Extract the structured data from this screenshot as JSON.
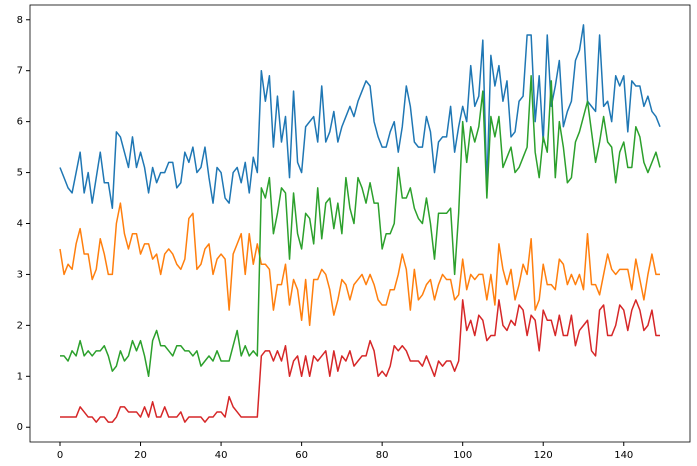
{
  "chart_data": {
    "type": "line",
    "x": [
      0,
      1,
      2,
      3,
      4,
      5,
      6,
      7,
      8,
      9,
      10,
      11,
      12,
      13,
      14,
      15,
      16,
      17,
      18,
      19,
      20,
      21,
      22,
      23,
      24,
      25,
      26,
      27,
      28,
      29,
      30,
      31,
      32,
      33,
      34,
      35,
      36,
      37,
      38,
      39,
      40,
      41,
      42,
      43,
      44,
      45,
      46,
      47,
      48,
      49,
      50,
      51,
      52,
      53,
      54,
      55,
      56,
      57,
      58,
      59,
      60,
      61,
      62,
      63,
      64,
      65,
      66,
      67,
      68,
      69,
      70,
      71,
      72,
      73,
      74,
      75,
      76,
      77,
      78,
      79,
      80,
      81,
      82,
      83,
      84,
      85,
      86,
      87,
      88,
      89,
      90,
      91,
      92,
      93,
      94,
      95,
      96,
      97,
      98,
      99,
      100,
      101,
      102,
      103,
      104,
      105,
      106,
      107,
      108,
      109,
      110,
      111,
      112,
      113,
      114,
      115,
      116,
      117,
      118,
      119,
      120,
      121,
      122,
      123,
      124,
      125,
      126,
      127,
      128,
      129,
      130,
      131,
      132,
      133,
      134,
      135,
      136,
      137,
      138,
      139,
      140,
      141,
      142,
      143,
      144,
      145,
      146,
      147,
      148,
      149
    ],
    "series": [
      {
        "color": "#1f77b4",
        "values": [
          5.1,
          4.9,
          4.7,
          4.6,
          5.0,
          5.4,
          4.6,
          5.0,
          4.4,
          4.9,
          5.4,
          4.8,
          4.8,
          4.3,
          5.8,
          5.7,
          5.4,
          5.1,
          5.7,
          5.1,
          5.4,
          5.1,
          4.6,
          5.1,
          4.8,
          5.0,
          5.0,
          5.2,
          5.2,
          4.7,
          4.8,
          5.4,
          5.2,
          5.5,
          5.0,
          5.1,
          5.5,
          4.9,
          4.4,
          5.1,
          5.0,
          4.5,
          4.4,
          5.0,
          5.1,
          4.8,
          5.2,
          4.6,
          5.3,
          5.0,
          7.0,
          6.4,
          6.9,
          5.5,
          6.5,
          5.6,
          6.1,
          4.9,
          6.6,
          5.2,
          5.0,
          5.9,
          6.0,
          6.1,
          5.6,
          6.7,
          5.6,
          5.8,
          6.2,
          5.6,
          5.9,
          6.1,
          6.3,
          6.1,
          6.4,
          6.6,
          6.8,
          6.7,
          6.0,
          5.7,
          5.5,
          5.5,
          5.8,
          6.0,
          5.4,
          5.9,
          6.7,
          6.3,
          5.6,
          5.5,
          5.5,
          6.1,
          5.8,
          5.0,
          5.6,
          5.7,
          5.7,
          6.3,
          5.4,
          5.9,
          6.3,
          6.0,
          7.1,
          6.3,
          6.5,
          7.6,
          4.7,
          7.3,
          6.7,
          7.1,
          6.4,
          6.8,
          5.7,
          5.8,
          6.4,
          6.5,
          7.7,
          7.7,
          6.0,
          6.9,
          5.6,
          7.7,
          6.3,
          6.7,
          7.2,
          5.9,
          6.2,
          6.4,
          7.2,
          7.4,
          7.9,
          6.4,
          6.3,
          6.2,
          7.7,
          6.3,
          6.4,
          6.0,
          6.9,
          6.7,
          6.9,
          5.8,
          6.8,
          6.7,
          6.7,
          6.3,
          6.5,
          6.2,
          6.1,
          5.9
        ]
      },
      {
        "color": "#ff7f0e",
        "values": [
          3.5,
          3.0,
          3.2,
          3.1,
          3.6,
          3.9,
          3.4,
          3.4,
          2.9,
          3.1,
          3.7,
          3.4,
          3.0,
          3.0,
          4.0,
          4.4,
          3.8,
          3.5,
          3.8,
          3.8,
          3.4,
          3.6,
          3.6,
          3.3,
          3.4,
          3.0,
          3.4,
          3.5,
          3.4,
          3.2,
          3.1,
          3.3,
          4.1,
          4.2,
          3.1,
          3.2,
          3.5,
          3.6,
          3.0,
          3.3,
          3.4,
          3.3,
          2.3,
          3.4,
          3.6,
          3.8,
          3.0,
          3.8,
          3.2,
          3.6,
          3.2,
          3.2,
          3.1,
          2.3,
          2.8,
          2.8,
          3.2,
          2.4,
          2.9,
          2.7,
          2.1,
          2.9,
          2.0,
          2.9,
          2.9,
          3.1,
          3.0,
          2.7,
          2.2,
          2.5,
          2.9,
          2.8,
          2.5,
          2.8,
          2.9,
          3.0,
          2.8,
          3.0,
          2.8,
          2.5,
          2.4,
          2.4,
          2.7,
          2.7,
          3.0,
          3.4,
          3.1,
          2.3,
          3.1,
          2.5,
          2.6,
          2.8,
          2.9,
          2.5,
          2.8,
          3.0,
          2.9,
          2.9,
          2.5,
          2.6,
          3.3,
          2.7,
          3.0,
          2.9,
          3.0,
          3.0,
          2.5,
          3.0,
          2.4,
          3.6,
          3.1,
          2.8,
          3.1,
          2.5,
          2.8,
          3.2,
          3.0,
          3.7,
          2.3,
          2.5,
          3.2,
          2.8,
          2.8,
          2.7,
          3.3,
          3.2,
          2.8,
          3.0,
          2.8,
          3.0,
          2.7,
          3.8,
          2.8,
          2.8,
          2.6,
          3.0,
          3.4,
          3.1,
          3.0,
          3.1,
          3.1,
          3.1,
          2.7,
          3.3,
          2.9,
          2.5,
          3.0,
          3.4,
          3.0,
          3.0
        ]
      },
      {
        "color": "#2ca02c",
        "values": [
          1.4,
          1.4,
          1.3,
          1.5,
          1.4,
          1.7,
          1.4,
          1.5,
          1.4,
          1.5,
          1.5,
          1.6,
          1.4,
          1.1,
          1.2,
          1.5,
          1.3,
          1.4,
          1.7,
          1.5,
          1.7,
          1.4,
          1.0,
          1.7,
          1.9,
          1.6,
          1.6,
          1.5,
          1.4,
          1.6,
          1.6,
          1.5,
          1.5,
          1.4,
          1.5,
          1.2,
          1.3,
          1.4,
          1.3,
          1.5,
          1.3,
          1.3,
          1.3,
          1.6,
          1.9,
          1.4,
          1.6,
          1.4,
          1.5,
          1.4,
          4.7,
          4.5,
          4.9,
          3.8,
          4.2,
          4.7,
          4.6,
          3.3,
          4.6,
          3.8,
          3.5,
          4.2,
          4.1,
          3.6,
          4.7,
          3.7,
          4.4,
          4.5,
          3.9,
          4.4,
          3.8,
          4.9,
          4.3,
          4.0,
          4.9,
          4.7,
          4.4,
          4.8,
          4.4,
          4.4,
          3.5,
          3.8,
          3.8,
          4.0,
          5.1,
          4.5,
          4.5,
          4.7,
          4.3,
          4.1,
          4.0,
          4.5,
          4.0,
          3.3,
          4.2,
          4.2,
          4.2,
          4.3,
          3.0,
          4.2,
          6.0,
          5.2,
          5.9,
          5.6,
          5.9,
          6.6,
          4.5,
          6.1,
          5.7,
          6.1,
          5.1,
          5.3,
          5.5,
          5.0,
          5.1,
          5.3,
          5.5,
          6.9,
          5.4,
          4.9,
          5.7,
          5.4,
          6.8,
          4.9,
          6.0,
          5.5,
          4.8,
          4.9,
          5.6,
          5.8,
          6.1,
          6.4,
          5.8,
          5.2,
          5.6,
          6.1,
          5.6,
          5.5,
          4.8,
          5.4,
          5.6,
          5.1,
          5.1,
          5.9,
          5.7,
          5.2,
          5.0,
          5.2,
          5.4,
          5.1
        ]
      },
      {
        "color": "#d62728",
        "values": [
          0.2,
          0.2,
          0.2,
          0.2,
          0.2,
          0.4,
          0.3,
          0.2,
          0.2,
          0.1,
          0.2,
          0.2,
          0.1,
          0.1,
          0.2,
          0.4,
          0.4,
          0.3,
          0.3,
          0.3,
          0.2,
          0.4,
          0.2,
          0.5,
          0.2,
          0.2,
          0.4,
          0.2,
          0.2,
          0.2,
          0.3,
          0.1,
          0.2,
          0.2,
          0.2,
          0.2,
          0.1,
          0.2,
          0.2,
          0.3,
          0.3,
          0.2,
          0.6,
          0.4,
          0.3,
          0.2,
          0.2,
          0.2,
          0.2,
          0.2,
          1.4,
          1.5,
          1.5,
          1.3,
          1.5,
          1.3,
          1.6,
          1.0,
          1.3,
          1.4,
          1.0,
          1.4,
          1.0,
          1.4,
          1.3,
          1.4,
          1.5,
          1.0,
          1.5,
          1.1,
          1.4,
          1.3,
          1.5,
          1.2,
          1.3,
          1.4,
          1.4,
          1.7,
          1.5,
          1.0,
          1.1,
          1.0,
          1.2,
          1.6,
          1.5,
          1.6,
          1.5,
          1.3,
          1.3,
          1.3,
          1.2,
          1.4,
          1.2,
          1.0,
          1.3,
          1.2,
          1.3,
          1.3,
          1.1,
          1.3,
          2.5,
          1.9,
          2.1,
          1.8,
          2.2,
          2.1,
          1.7,
          1.8,
          1.8,
          2.5,
          2.0,
          1.9,
          2.1,
          2.0,
          2.4,
          2.3,
          1.8,
          2.2,
          2.1,
          1.5,
          2.3,
          2.1,
          2.1,
          1.8,
          2.2,
          1.8,
          1.8,
          2.2,
          1.6,
          1.9,
          2.0,
          2.1,
          1.5,
          1.4,
          2.3,
          2.4,
          1.8,
          1.8,
          2.0,
          2.4,
          2.3,
          1.9,
          2.3,
          2.5,
          2.3,
          1.9,
          2.0,
          2.3,
          1.8,
          1.8
        ]
      }
    ],
    "xlim": [
      -7.45,
      156.45
    ],
    "xticks": [
      0,
      20,
      40,
      60,
      80,
      100,
      120,
      140
    ],
    "ylim": [
      -0.29,
      8.29
    ],
    "yticks": [
      0,
      1,
      2,
      3,
      4,
      5,
      6,
      7,
      8
    ],
    "grid": false
  }
}
